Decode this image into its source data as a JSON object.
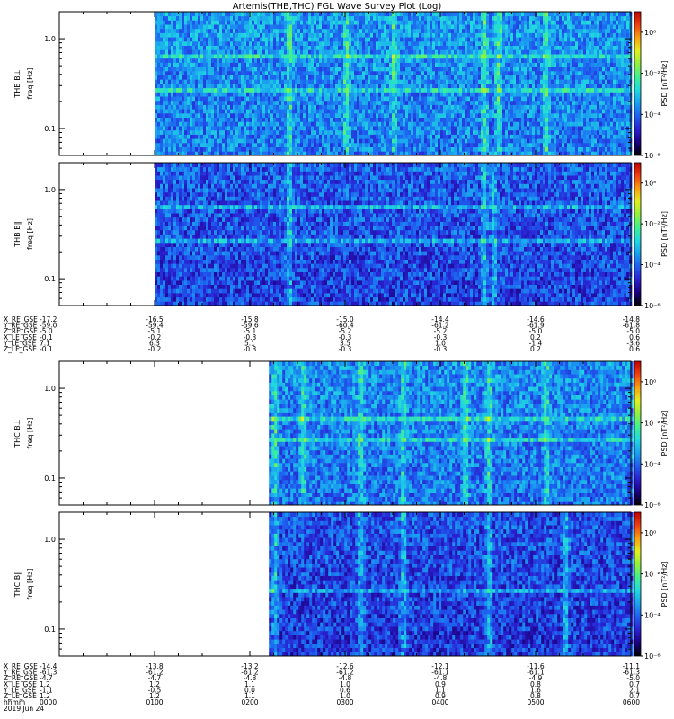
{
  "title": "Artemis(THB,THC) FGL Wave Survey Plot (Log)",
  "freq_label": "freq [Hz]",
  "color_axis_label": "PSD [nT²/Hz]",
  "colorbar_ticks": [
    "10⁰",
    "10⁻²",
    "10⁻⁴",
    "10⁻⁶"
  ],
  "colormap_colors": [
    "#000000",
    "#1a0080",
    "#2a20d0",
    "#1e5ef0",
    "#1aa0f0",
    "#20d8e0",
    "#40f090",
    "#90f040",
    "#e0f020",
    "#f8a010",
    "#f04010",
    "#c00000"
  ],
  "footer": {
    "time_prefix": "hhmm",
    "date": "2019 Jun 24",
    "time_ticks": [
      "0000",
      "0100",
      "0200",
      "0300",
      "0400",
      "0500",
      "0600"
    ]
  },
  "orbit_tables": [
    {
      "probe": "THB",
      "rows": [
        {
          "label": "X_RE_GSE",
          "values": [
            "-17.2",
            "-16.5",
            "-15.8",
            "-15.0",
            "-14.4",
            "-14.6",
            "-14.8"
          ]
        },
        {
          "label": "Y_RE_GSE",
          "values": [
            "-59.0",
            "-59.4",
            "-59.6",
            "-60.4",
            "-61.2",
            "-61.9",
            "-61.8"
          ]
        },
        {
          "label": "Z_RE_GSE",
          "values": [
            "-5.0",
            "-5.1",
            "-5.1",
            "-5.2",
            "-5.2",
            "-5.0",
            "-5.0"
          ]
        },
        {
          "label": "X_LE_GSE",
          "values": [
            "-0.1",
            "-0.2",
            "-0.3",
            "-0.3",
            "-0.3",
            "0.2",
            "0.6"
          ]
        },
        {
          "label": "Y_LE_GSE",
          "values": [
            "7.1",
            "6.3",
            "5.1",
            "3.5",
            "1.0",
            "-1.4",
            "-3.6"
          ]
        },
        {
          "label": "Z_LE_GSE",
          "values": [
            "-0.1",
            "-0.2",
            "-0.3",
            "-0.3",
            "-0.3",
            "0.2",
            "0.6"
          ]
        }
      ]
    },
    {
      "probe": "THC",
      "rows": [
        {
          "label": "X_RE_GSE",
          "values": [
            "-14.4",
            "-13.8",
            "-13.2",
            "-12.6",
            "-12.1",
            "-11.6",
            "-11.1"
          ]
        },
        {
          "label": "Y_RE_GSE",
          "values": [
            "-61.3",
            "-61.2",
            "-61.2",
            "-61.2",
            "-61.1",
            "-61.1",
            "-61.3"
          ]
        },
        {
          "label": "Z_RE_GSE",
          "values": [
            "-4.7",
            "-4.7",
            "-4.8",
            "-4.8",
            "-4.8",
            "-4.9",
            "-5.0"
          ]
        },
        {
          "label": "X_LE_GSE",
          "values": [
            "1.2",
            "1.2",
            "1.1",
            "1.0",
            "0.9",
            "0.8",
            "0.7"
          ]
        },
        {
          "label": "Y_LE_GSE",
          "values": [
            "-1.1",
            "-0.5",
            "0.0",
            "0.6",
            "1.1",
            "1.6",
            "2.1"
          ]
        },
        {
          "label": "Z_LE_GSE",
          "values": [
            "1.2",
            "1.2",
            "1.1",
            "1.0",
            "0.9",
            "0.8",
            "0.7"
          ]
        }
      ]
    }
  ],
  "chart_data": [
    {
      "type": "heatmap",
      "panel": "THB B⊥",
      "ylabel": "THB B⊥",
      "yunit_label": "freq [Hz]",
      "y_scale": "log",
      "ylim_hz": [
        0.05,
        2.0
      ],
      "y_ticks_hz": [
        1.0,
        0.1
      ],
      "y_tick_labels": [
        "1.0",
        "0.1"
      ],
      "x_range_hours": [
        0,
        6
      ],
      "data_start_hour": 1.0,
      "color_scale": "log",
      "color_range_exp": [
        -6,
        1
      ],
      "baseline_exp": -3.8,
      "enhanced_freq_bands_hz": [
        0.27,
        0.65
      ],
      "enhanced_time_spikes_hour": [
        2.4,
        3.0,
        3.5,
        4.45,
        4.6,
        5.1
      ]
    },
    {
      "type": "heatmap",
      "panel": "THB B∥",
      "ylabel": "THB B∥",
      "yunit_label": "freq [Hz]",
      "y_scale": "log",
      "ylim_hz": [
        0.05,
        2.0
      ],
      "y_ticks_hz": [
        1.0,
        0.1
      ],
      "y_tick_labels": [
        "1.0",
        "0.1"
      ],
      "x_range_hours": [
        0,
        6
      ],
      "data_start_hour": 1.0,
      "color_scale": "log",
      "color_range_exp": [
        -6,
        1
      ],
      "baseline_exp": -4.4,
      "enhanced_freq_bands_hz": [
        0.27,
        0.65
      ],
      "enhanced_time_spikes_hour": [
        2.4,
        4.45,
        4.55
      ]
    },
    {
      "type": "heatmap",
      "panel": "THC B⊥",
      "ylabel": "THC B⊥",
      "yunit_label": "freq [Hz]",
      "y_scale": "log",
      "ylim_hz": [
        0.05,
        2.0
      ],
      "y_ticks_hz": [
        1.0,
        0.1
      ],
      "y_tick_labels": [
        "1.0",
        "0.1"
      ],
      "x_range_hours": [
        0,
        6
      ],
      "data_start_hour": 2.2,
      "color_scale": "log",
      "color_range_exp": [
        -6,
        1
      ],
      "baseline_exp": -3.9,
      "enhanced_freq_bands_hz": [
        0.27,
        0.45
      ],
      "enhanced_time_spikes_hour": [
        2.25,
        2.55,
        3.15,
        3.6,
        4.25,
        4.5,
        5.1
      ]
    },
    {
      "type": "heatmap",
      "panel": "THC B∥",
      "ylabel": "THC B∥",
      "yunit_label": "freq [Hz]",
      "y_scale": "log",
      "ylim_hz": [
        0.05,
        2.0
      ],
      "y_ticks_hz": [
        1.0,
        0.1
      ],
      "y_tick_labels": [
        "1.0",
        "0.1"
      ],
      "x_range_hours": [
        0,
        6
      ],
      "data_start_hour": 2.2,
      "color_scale": "log",
      "color_range_exp": [
        -6,
        1
      ],
      "baseline_exp": -4.5,
      "enhanced_freq_bands_hz": [
        0.27
      ],
      "enhanced_time_spikes_hour": [
        2.25,
        3.15,
        3.6,
        4.5,
        5.3
      ]
    }
  ]
}
